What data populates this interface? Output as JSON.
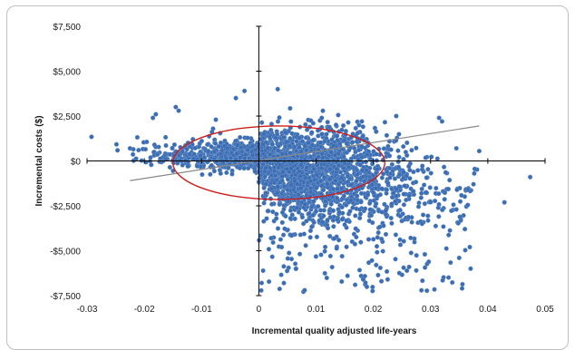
{
  "chart_data": {
    "type": "scatter",
    "title": "",
    "xlabel": "Incremental quality adjusted life-years",
    "ylabel": "Incremental costs ($)",
    "xlim": [
      -0.03,
      0.05
    ],
    "ylim": [
      -7500,
      7500
    ],
    "x_ticks": [
      "-0.03",
      "-0.02",
      "-0.01",
      "0",
      "0.01",
      "0.02",
      "0.03",
      "0.04",
      "0.05"
    ],
    "y_ticks": [
      "$7,500",
      "$5,000",
      "$2,500",
      "$0",
      "-$2,500",
      "-$5,000",
      "-$7,500"
    ],
    "grid": false,
    "marker_color": "#3b6db3",
    "trend_line": {
      "color": "#888888",
      "from": [
        -0.0225,
        -1100
      ],
      "to": [
        0.0385,
        1950
      ]
    },
    "ellipse": {
      "color": "#cc1f1f",
      "center": [
        0.0035,
        -100
      ],
      "rx": 0.0185,
      "ry_cost": 2050
    },
    "cloud": {
      "points_shown": 2500,
      "core": {
        "x_mean": 0.003,
        "x_sd": 0.0095,
        "y_mean": -200,
        "y_sd": 900
      },
      "negative_tail": {
        "x_range": [
          0.0,
          0.037
        ],
        "y_range": [
          -7300,
          -1500
        ]
      },
      "outliers": [
        [
          -0.0185,
          2400
        ],
        [
          -0.018,
          2600
        ],
        [
          -0.014,
          2800
        ],
        [
          -0.0145,
          3000
        ],
        [
          -0.004,
          3500
        ],
        [
          -0.0025,
          3900
        ],
        [
          0.0033,
          4000
        ],
        [
          -0.008,
          1800
        ],
        [
          -0.0075,
          2300
        ],
        [
          0.011,
          2400
        ],
        [
          0.0095,
          2100
        ],
        [
          0.018,
          2200
        ],
        [
          0.024,
          2500
        ],
        [
          0.0315,
          2400
        ],
        [
          0.032,
          2200
        ],
        [
          0.0345,
          700
        ],
        [
          0.0385,
          550
        ],
        [
          -0.0225,
          700
        ],
        [
          -0.021,
          600
        ],
        [
          -0.0198,
          650
        ],
        [
          0.037,
          -6000
        ],
        [
          0.036,
          -3800
        ],
        [
          0.035,
          -5400
        ],
        [
          0.029,
          -5200
        ],
        [
          0.008,
          -7200
        ],
        [
          0.0005,
          -6800
        ],
        [
          0.0225,
          -6600
        ],
        [
          0.0275,
          -6100
        ],
        [
          0.0205,
          -5800
        ],
        [
          0.0125,
          -5300
        ],
        [
          0.0065,
          -6000
        ],
        [
          0.004,
          -4800
        ],
        [
          0.0375,
          -1300
        ],
        [
          0.0365,
          -1600
        ],
        [
          0.0345,
          -2700
        ],
        [
          0.0155,
          -6400
        ],
        [
          0.0285,
          -3500
        ],
        [
          0.03,
          -2300
        ]
      ]
    }
  }
}
